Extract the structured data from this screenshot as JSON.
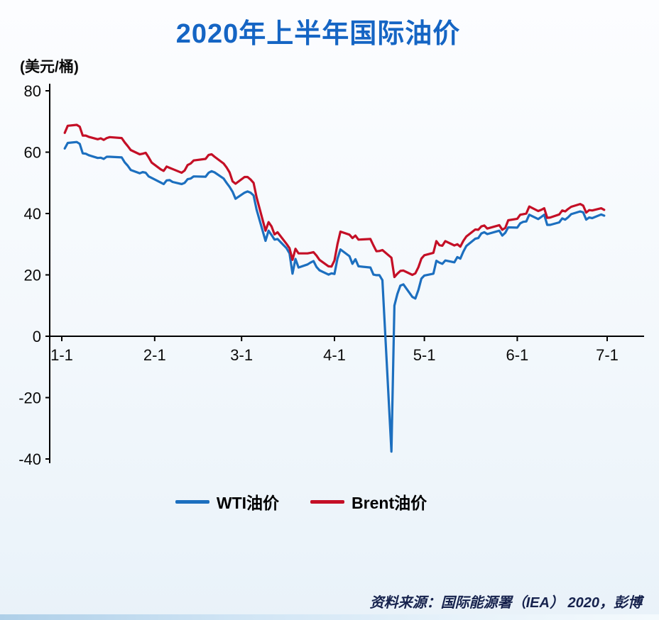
{
  "page": {
    "source": "资料来源：国际能源署（IEA） 2020，彭博"
  },
  "colors": {
    "title": "#1565c4",
    "wti_line": "#1c6fbf",
    "brent_line": "#c40f26",
    "axis": "#000000",
    "source_text": "#16224d"
  },
  "chart_data": {
    "type": "line",
    "title": "2020年上半年国际油价",
    "ylabel": "(美元/桶)",
    "grid": false,
    "legend_position": "bottom-center",
    "x_axis": {
      "range_days": [
        1,
        183
      ],
      "ticks": [
        {
          "day": 1,
          "label": "1-1"
        },
        {
          "day": 32,
          "label": "2-1"
        },
        {
          "day": 61,
          "label": "3-1"
        },
        {
          "day": 92,
          "label": "4-1"
        },
        {
          "day": 122,
          "label": "5-1"
        },
        {
          "day": 153,
          "label": "6-1"
        },
        {
          "day": 183,
          "label": "7-1"
        }
      ]
    },
    "y_axis": {
      "range": [
        -40,
        80
      ],
      "ticks": [
        80,
        60,
        40,
        20,
        0,
        -20,
        -40
      ],
      "unit": "美元/桶"
    },
    "series": [
      {
        "name": "WTI油价",
        "color": "#1c6fbf",
        "points": [
          [
            2,
            61.2
          ],
          [
            3,
            63.0
          ],
          [
            6,
            63.3
          ],
          [
            7,
            62.7
          ],
          [
            8,
            59.6
          ],
          [
            9,
            59.5
          ],
          [
            10,
            59.0
          ],
          [
            13,
            58.1
          ],
          [
            14,
            58.2
          ],
          [
            15,
            57.8
          ],
          [
            16,
            58.5
          ],
          [
            17,
            58.5
          ],
          [
            21,
            58.3
          ],
          [
            22,
            56.7
          ],
          [
            23,
            55.6
          ],
          [
            24,
            54.2
          ],
          [
            27,
            53.1
          ],
          [
            28,
            53.5
          ],
          [
            29,
            53.3
          ],
          [
            30,
            52.1
          ],
          [
            31,
            51.6
          ],
          [
            34,
            50.1
          ],
          [
            35,
            49.6
          ],
          [
            36,
            50.8
          ],
          [
            37,
            50.9
          ],
          [
            38,
            50.3
          ],
          [
            41,
            49.6
          ],
          [
            42,
            50.0
          ],
          [
            43,
            51.2
          ],
          [
            44,
            51.4
          ],
          [
            45,
            52.1
          ],
          [
            49,
            52.0
          ],
          [
            50,
            53.3
          ],
          [
            51,
            53.8
          ],
          [
            52,
            53.4
          ],
          [
            55,
            51.4
          ],
          [
            56,
            50.0
          ],
          [
            57,
            48.7
          ],
          [
            58,
            47.1
          ],
          [
            59,
            44.8
          ],
          [
            62,
            46.8
          ],
          [
            63,
            47.2
          ],
          [
            64,
            46.8
          ],
          [
            65,
            45.9
          ],
          [
            66,
            41.3
          ],
          [
            69,
            31.1
          ],
          [
            70,
            34.4
          ],
          [
            71,
            33.0
          ],
          [
            72,
            31.5
          ],
          [
            73,
            31.7
          ],
          [
            76,
            28.7
          ],
          [
            77,
            27.0
          ],
          [
            78,
            20.4
          ],
          [
            79,
            25.2
          ],
          [
            80,
            22.4
          ],
          [
            83,
            23.4
          ],
          [
            84,
            24.0
          ],
          [
            85,
            24.5
          ],
          [
            86,
            22.6
          ],
          [
            87,
            21.5
          ],
          [
            90,
            20.1
          ],
          [
            91,
            20.5
          ],
          [
            92,
            20.3
          ],
          [
            93,
            25.3
          ],
          [
            94,
            28.3
          ],
          [
            97,
            26.1
          ],
          [
            98,
            23.6
          ],
          [
            99,
            25.1
          ],
          [
            100,
            22.8
          ],
          [
            104,
            22.4
          ],
          [
            105,
            20.1
          ],
          [
            106,
            19.9
          ],
          [
            107,
            19.9
          ],
          [
            108,
            18.3
          ],
          [
            111,
            -37.6
          ],
          [
            112,
            10.0
          ],
          [
            113,
            13.8
          ],
          [
            114,
            16.5
          ],
          [
            115,
            16.9
          ],
          [
            118,
            12.8
          ],
          [
            119,
            12.3
          ],
          [
            120,
            15.1
          ],
          [
            121,
            18.8
          ],
          [
            122,
            19.8
          ],
          [
            125,
            20.4
          ],
          [
            126,
            24.6
          ],
          [
            127,
            24.0
          ],
          [
            128,
            23.6
          ],
          [
            129,
            24.7
          ],
          [
            132,
            24.1
          ],
          [
            133,
            25.8
          ],
          [
            134,
            25.3
          ],
          [
            135,
            27.6
          ],
          [
            136,
            29.4
          ],
          [
            139,
            31.8
          ],
          [
            140,
            32.0
          ],
          [
            141,
            33.5
          ],
          [
            142,
            33.9
          ],
          [
            143,
            33.3
          ],
          [
            147,
            34.4
          ],
          [
            148,
            32.8
          ],
          [
            149,
            33.7
          ],
          [
            150,
            35.5
          ],
          [
            153,
            35.4
          ],
          [
            154,
            36.8
          ],
          [
            155,
            37.3
          ],
          [
            156,
            37.4
          ],
          [
            157,
            39.6
          ],
          [
            160,
            38.2
          ],
          [
            161,
            38.9
          ],
          [
            162,
            39.6
          ],
          [
            163,
            36.3
          ],
          [
            164,
            36.3
          ],
          [
            167,
            37.1
          ],
          [
            168,
            38.4
          ],
          [
            169,
            38.0
          ],
          [
            170,
            38.8
          ],
          [
            171,
            39.8
          ],
          [
            174,
            40.7
          ],
          [
            175,
            40.4
          ],
          [
            176,
            38.0
          ],
          [
            177,
            38.7
          ],
          [
            178,
            38.5
          ],
          [
            181,
            39.7
          ],
          [
            182,
            39.3
          ]
        ]
      },
      {
        "name": "Brent油价",
        "color": "#c40f26",
        "points": [
          [
            2,
            66.3
          ],
          [
            3,
            68.6
          ],
          [
            6,
            68.9
          ],
          [
            7,
            68.3
          ],
          [
            8,
            65.4
          ],
          [
            9,
            65.4
          ],
          [
            10,
            65.0
          ],
          [
            13,
            64.2
          ],
          [
            14,
            64.5
          ],
          [
            15,
            64.0
          ],
          [
            16,
            64.6
          ],
          [
            17,
            64.9
          ],
          [
            21,
            64.6
          ],
          [
            22,
            63.2
          ],
          [
            23,
            62.0
          ],
          [
            24,
            60.7
          ],
          [
            27,
            59.3
          ],
          [
            28,
            59.5
          ],
          [
            29,
            59.8
          ],
          [
            30,
            58.3
          ],
          [
            31,
            56.6
          ],
          [
            34,
            54.4
          ],
          [
            35,
            53.9
          ],
          [
            36,
            55.3
          ],
          [
            37,
            54.9
          ],
          [
            38,
            54.5
          ],
          [
            41,
            53.3
          ],
          [
            42,
            54.0
          ],
          [
            43,
            55.8
          ],
          [
            44,
            56.3
          ],
          [
            45,
            57.3
          ],
          [
            49,
            57.8
          ],
          [
            50,
            59.1
          ],
          [
            51,
            59.3
          ],
          [
            52,
            58.5
          ],
          [
            55,
            56.3
          ],
          [
            56,
            55.0
          ],
          [
            57,
            53.4
          ],
          [
            58,
            50.5
          ],
          [
            59,
            49.7
          ],
          [
            62,
            51.9
          ],
          [
            63,
            51.9
          ],
          [
            64,
            51.1
          ],
          [
            65,
            50.0
          ],
          [
            66,
            45.3
          ],
          [
            69,
            34.4
          ],
          [
            70,
            37.2
          ],
          [
            71,
            35.8
          ],
          [
            72,
            33.2
          ],
          [
            73,
            33.9
          ],
          [
            76,
            30.1
          ],
          [
            77,
            28.7
          ],
          [
            78,
            24.9
          ],
          [
            79,
            28.5
          ],
          [
            80,
            27.0
          ],
          [
            83,
            27.0
          ],
          [
            84,
            27.2
          ],
          [
            85,
            27.4
          ],
          [
            86,
            26.3
          ],
          [
            87,
            24.9
          ],
          [
            90,
            22.8
          ],
          [
            91,
            22.7
          ],
          [
            92,
            24.7
          ],
          [
            93,
            30.0
          ],
          [
            94,
            34.1
          ],
          [
            97,
            33.1
          ],
          [
            98,
            32.0
          ],
          [
            99,
            32.8
          ],
          [
            100,
            31.5
          ],
          [
            104,
            31.7
          ],
          [
            105,
            29.6
          ],
          [
            106,
            27.7
          ],
          [
            107,
            27.8
          ],
          [
            108,
            28.1
          ],
          [
            111,
            25.6
          ],
          [
            112,
            19.3
          ],
          [
            113,
            20.4
          ],
          [
            114,
            21.3
          ],
          [
            115,
            21.4
          ],
          [
            118,
            20.0
          ],
          [
            119,
            20.5
          ],
          [
            120,
            22.5
          ],
          [
            121,
            25.3
          ],
          [
            122,
            26.4
          ],
          [
            125,
            27.2
          ],
          [
            126,
            31.0
          ],
          [
            127,
            29.7
          ],
          [
            128,
            29.5
          ],
          [
            129,
            31.0
          ],
          [
            132,
            29.6
          ],
          [
            133,
            30.0
          ],
          [
            134,
            29.2
          ],
          [
            135,
            31.1
          ],
          [
            136,
            32.5
          ],
          [
            139,
            34.8
          ],
          [
            140,
            34.7
          ],
          [
            141,
            35.8
          ],
          [
            142,
            36.1
          ],
          [
            143,
            35.1
          ],
          [
            147,
            36.2
          ],
          [
            148,
            34.7
          ],
          [
            149,
            35.3
          ],
          [
            150,
            37.8
          ],
          [
            153,
            38.3
          ],
          [
            154,
            39.6
          ],
          [
            155,
            39.8
          ],
          [
            156,
            40.0
          ],
          [
            157,
            42.3
          ],
          [
            160,
            40.8
          ],
          [
            161,
            41.2
          ],
          [
            162,
            41.7
          ],
          [
            163,
            38.6
          ],
          [
            164,
            38.7
          ],
          [
            167,
            39.7
          ],
          [
            168,
            41.0
          ],
          [
            169,
            40.7
          ],
          [
            170,
            41.5
          ],
          [
            171,
            42.2
          ],
          [
            174,
            43.1
          ],
          [
            175,
            42.6
          ],
          [
            176,
            40.3
          ],
          [
            177,
            41.1
          ],
          [
            178,
            41.0
          ],
          [
            181,
            41.7
          ],
          [
            182,
            41.2
          ]
        ]
      }
    ]
  }
}
